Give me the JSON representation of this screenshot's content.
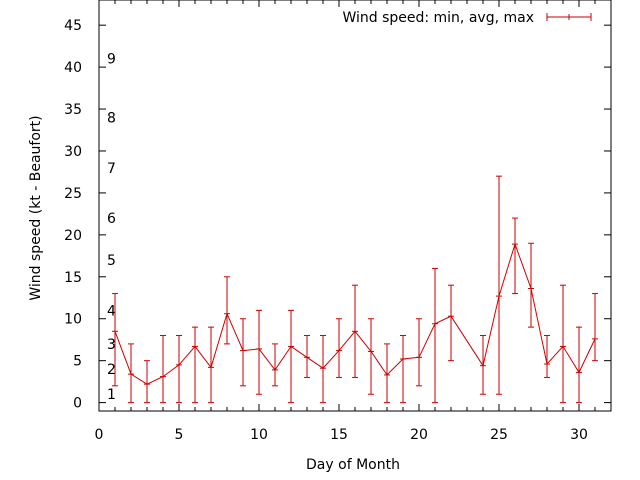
{
  "chart_data": {
    "type": "line",
    "xlabel": "Day of Month",
    "ylabel": "Wind speed (kt - Beaufort)",
    "xlim": [
      0,
      32
    ],
    "ylim": [
      -1,
      48
    ],
    "grid": false,
    "legend_position": "top-right",
    "x_ticks": [
      "0",
      "5",
      "10",
      "15",
      "20",
      "25",
      "30"
    ],
    "y_ticks": [
      "0",
      "5",
      "10",
      "15",
      "20",
      "25",
      "30",
      "35",
      "40",
      "45"
    ],
    "beaufort_labels": [
      {
        "label": "1",
        "y": 1
      },
      {
        "label": "2",
        "y": 4
      },
      {
        "label": "3",
        "y": 7
      },
      {
        "label": "4",
        "y": 11
      },
      {
        "label": "5",
        "y": 17
      },
      {
        "label": "6",
        "y": 22
      },
      {
        "label": "7",
        "y": 28
      },
      {
        "label": "8",
        "y": 34
      },
      {
        "label": "9",
        "y": 41
      }
    ],
    "series": [
      {
        "name": "Wind speed: min, avg, max",
        "color": "#cc0000",
        "points": [
          {
            "x": 1,
            "avg": 8.5,
            "min": 2,
            "max": 13
          },
          {
            "x": 2,
            "avg": 3.4,
            "min": 0,
            "max": 7
          },
          {
            "x": 3,
            "avg": 2.2,
            "min": 0,
            "max": 5
          },
          {
            "x": 4,
            "avg": 3.1,
            "min": 0,
            "max": 8
          },
          {
            "x": 5,
            "avg": 4.5,
            "min": 0,
            "max": 8
          },
          {
            "x": 6,
            "avg": 6.7,
            "min": 0,
            "max": 9
          },
          {
            "x": 7,
            "avg": 4.2,
            "min": 0,
            "max": 9
          },
          {
            "x": 8,
            "avg": 10.6,
            "min": 7,
            "max": 15
          },
          {
            "x": 9,
            "avg": 6.2,
            "min": 2,
            "max": 10
          },
          {
            "x": 10,
            "avg": 6.4,
            "min": 1,
            "max": 11
          },
          {
            "x": 11,
            "avg": 3.9,
            "min": 2,
            "max": 7
          },
          {
            "x": 12,
            "avg": 6.7,
            "min": 0,
            "max": 11
          },
          {
            "x": 13,
            "avg": 5.4,
            "min": 3,
            "max": 8
          },
          {
            "x": 14,
            "avg": 4.1,
            "min": 0,
            "max": 8
          },
          {
            "x": 15,
            "avg": 6.2,
            "min": 3,
            "max": 10
          },
          {
            "x": 16,
            "avg": 8.5,
            "min": 3,
            "max": 14
          },
          {
            "x": 17,
            "avg": 6.1,
            "min": 1,
            "max": 10
          },
          {
            "x": 18,
            "avg": 3.3,
            "min": 0,
            "max": 7
          },
          {
            "x": 19,
            "avg": 5.2,
            "min": 0,
            "max": 8
          },
          {
            "x": 20,
            "avg": 5.4,
            "min": 2,
            "max": 10
          },
          {
            "x": 21,
            "avg": 9.4,
            "min": 0,
            "max": 16
          },
          {
            "x": 22,
            "avg": 10.3,
            "min": 5,
            "max": 14
          },
          {
            "x": 24,
            "avg": 4.4,
            "min": 1,
            "max": 8
          },
          {
            "x": 25,
            "avg": 12.7,
            "min": 1,
            "max": 27
          },
          {
            "x": 26,
            "avg": 18.9,
            "min": 13,
            "max": 22
          },
          {
            "x": 27,
            "avg": 13.6,
            "min": 9,
            "max": 19
          },
          {
            "x": 28,
            "avg": 4.6,
            "min": 3,
            "max": 8
          },
          {
            "x": 29,
            "avg": 6.7,
            "min": 0,
            "max": 14
          },
          {
            "x": 30,
            "avg": 3.6,
            "min": 0,
            "max": 9
          },
          {
            "x": 31,
            "avg": 7.6,
            "min": 5,
            "max": 13
          }
        ]
      }
    ]
  }
}
